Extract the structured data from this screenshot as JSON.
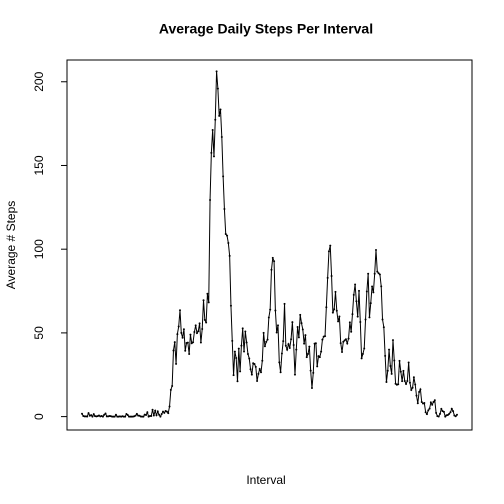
{
  "chart_data": {
    "type": "line",
    "title": "Average Daily Steps Per Interval",
    "x_label": "Interval",
    "y_label": "Average # Steps",
    "color": "#000000",
    "ylim": [
      -8,
      213
    ],
    "yticks": [
      0,
      50,
      100,
      150,
      200
    ],
    "values": [
      1.72,
      0.34,
      0.13,
      0.15,
      0.08,
      2.09,
      0.53,
      0.87,
      0,
      1.47,
      0.3,
      0.13,
      0.32,
      0.68,
      0.15,
      0.34,
      0,
      1.11,
      1.83,
      0.17,
      0.17,
      0.38,
      0.26,
      0,
      0,
      0,
      1.13,
      0,
      0,
      0.13,
      0,
      0.23,
      0,
      0,
      1.55,
      0.94,
      0,
      0,
      0,
      0,
      0.21,
      0.62,
      1.62,
      0.58,
      0.49,
      0.08,
      0,
      0,
      1.19,
      0.94,
      2.57,
      0,
      0.34,
      0.36,
      4.11,
      0.66,
      3.49,
      0.83,
      3.11,
      1.11,
      0,
      1.57,
      3,
      2.25,
      3.32,
      2.96,
      2.09,
      6.06,
      16,
      18.3,
      39.5,
      44.5,
      31.5,
      49.3,
      53.8,
      63.5,
      50,
      47.1,
      52.2,
      39.3,
      44,
      44.2,
      37.4,
      49,
      43.8,
      44.4,
      50.5,
      54.5,
      49.9,
      51,
      55.7,
      44.3,
      52.3,
      69.5,
      57.8,
      56.2,
      73.4,
      68.2,
      129.4,
      157.5,
      171.2,
      155.4,
      177.3,
      206.2,
      195.9,
      179.6,
      183.4,
      167,
      143.5,
      124,
      109.1,
      108.1,
      103.7,
      96,
      66.2,
      45.2,
      24.8,
      38.8,
      35,
      21.1,
      40.6,
      27,
      42.4,
      52.7,
      38.9,
      50.8,
      44.3,
      37.4,
      34.7,
      28.3,
      25.1,
      31.9,
      31.4,
      29.7,
      21.3,
      25.5,
      28.4,
      26.5,
      33.4,
      50,
      42,
      44.6,
      46,
      59.2,
      63.9,
      87.7,
      94.8,
      92.8,
      63.4,
      50.2,
      54.5,
      32.4,
      26.5,
      37.7,
      45.1,
      67.3,
      42.3,
      39.9,
      43.3,
      41,
      46.2,
      56.4,
      42.8,
      25.1,
      40,
      53.5,
      47.3,
      60.8,
      55.8,
      52,
      43.6,
      48.7,
      35.5,
      37.5,
      41.8,
      27.5,
      17.1,
      26.1,
      43.6,
      43.8,
      30,
      36.1,
      35.5,
      38.8,
      46,
      47.8,
      48.1,
      65.3,
      82.9,
      98.7,
      102.1,
      84,
      62.1,
      64.1,
      74.5,
      63.2,
      56.9,
      59.8,
      43.9,
      38.6,
      44.7,
      45.5,
      46.2,
      43.7,
      46.6,
      56.3,
      50.7,
      61.2,
      72.7,
      78.9,
      68.9,
      59.7,
      75.1,
      56.5,
      34.8,
      37.5,
      40.7,
      58,
      74.7,
      85.3,
      59.3,
      67.8,
      77.7,
      74.2,
      85.3,
      99.5,
      86.6,
      85.6,
      84.9,
      77.8,
      58,
      53.4,
      36.3,
      20.7,
      27.4,
      40,
      30.2,
      25.5,
      45.7,
      33.5,
      19.6,
      19,
      19.3,
      33.3,
      26.8,
      21.2,
      27.3,
      21.3,
      19.5,
      21.3,
      32.3,
      20.2,
      15.9,
      17.2,
      23.5,
      19.2,
      12.5,
      8,
      14.7,
      16.3,
      8.7,
      7.8,
      8.1,
      2.6,
      1.45,
      3.7,
      4.8,
      8.5,
      7.1,
      8.7,
      9.75,
      2.2,
      0.3,
      0.1,
      1.6,
      4.6,
      3.3,
      2.8,
      0,
      0.8,
      0.96,
      1.6,
      2.6,
      4.7,
      3.3,
      0.64,
      0.23,
      1.08
    ]
  }
}
